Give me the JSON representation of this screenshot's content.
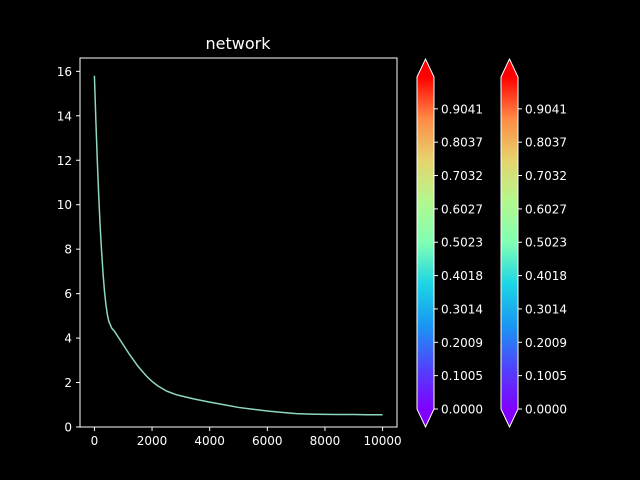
{
  "chart_data": {
    "type": "line",
    "title": "network",
    "xlabel": "",
    "ylabel": "",
    "xlim": [
      -500,
      10500
    ],
    "ylim": [
      0,
      16.6
    ],
    "x_ticks": [
      0,
      2000,
      4000,
      6000,
      8000,
      10000
    ],
    "x_tick_labels": [
      "0",
      "2000",
      "4000",
      "6000",
      "8000",
      "10000"
    ],
    "y_ticks": [
      0,
      2,
      4,
      6,
      8,
      10,
      12,
      14,
      16
    ],
    "y_tick_labels": [
      "0",
      "2",
      "4",
      "6",
      "8",
      "10",
      "12",
      "14",
      "16"
    ],
    "grid": false,
    "line_color": "#8fd6c4",
    "series": [
      {
        "x": [
          0,
          50,
          100,
          150,
          200,
          250,
          300,
          350,
          400,
          450,
          500,
          600,
          700,
          800,
          1000,
          1200,
          1500,
          1800,
          2000,
          2200,
          2500,
          2800,
          3000,
          3500,
          4000,
          4500,
          5000,
          5500,
          6000,
          6500,
          7000,
          7500,
          8000,
          8500,
          9000,
          9500,
          10000
        ],
        "y": [
          15.8,
          13.8,
          12.0,
          10.4,
          9.0,
          7.9,
          6.9,
          6.1,
          5.5,
          5.05,
          4.75,
          4.45,
          4.3,
          4.1,
          3.7,
          3.3,
          2.75,
          2.3,
          2.05,
          1.85,
          1.62,
          1.47,
          1.4,
          1.25,
          1.12,
          1.0,
          0.88,
          0.8,
          0.72,
          0.66,
          0.6,
          0.58,
          0.57,
          0.56,
          0.56,
          0.55,
          0.55
        ]
      }
    ],
    "colorbars": [
      {
        "cmap": "rainbow",
        "extend": "both",
        "min": 0.0,
        "max": 1.0,
        "ticks": [
          0.0,
          0.1005,
          0.2009,
          0.3014,
          0.4018,
          0.5023,
          0.6027,
          0.7032,
          0.8037,
          0.9041
        ],
        "tick_labels": [
          "0.0000",
          "0.1005",
          "0.2009",
          "0.3014",
          "0.4018",
          "0.5023",
          "0.6027",
          "0.7032",
          "0.8037",
          "0.9041"
        ]
      },
      {
        "cmap": "rainbow",
        "extend": "both",
        "min": 0.0,
        "max": 1.0,
        "ticks": [
          0.0,
          0.1005,
          0.2009,
          0.3014,
          0.4018,
          0.5023,
          0.6027,
          0.7032,
          0.8037,
          0.9041
        ],
        "tick_labels": [
          "0.0000",
          "0.1005",
          "0.2009",
          "0.3014",
          "0.4018",
          "0.5023",
          "0.6027",
          "0.7032",
          "0.8037",
          "0.9041"
        ]
      }
    ]
  }
}
